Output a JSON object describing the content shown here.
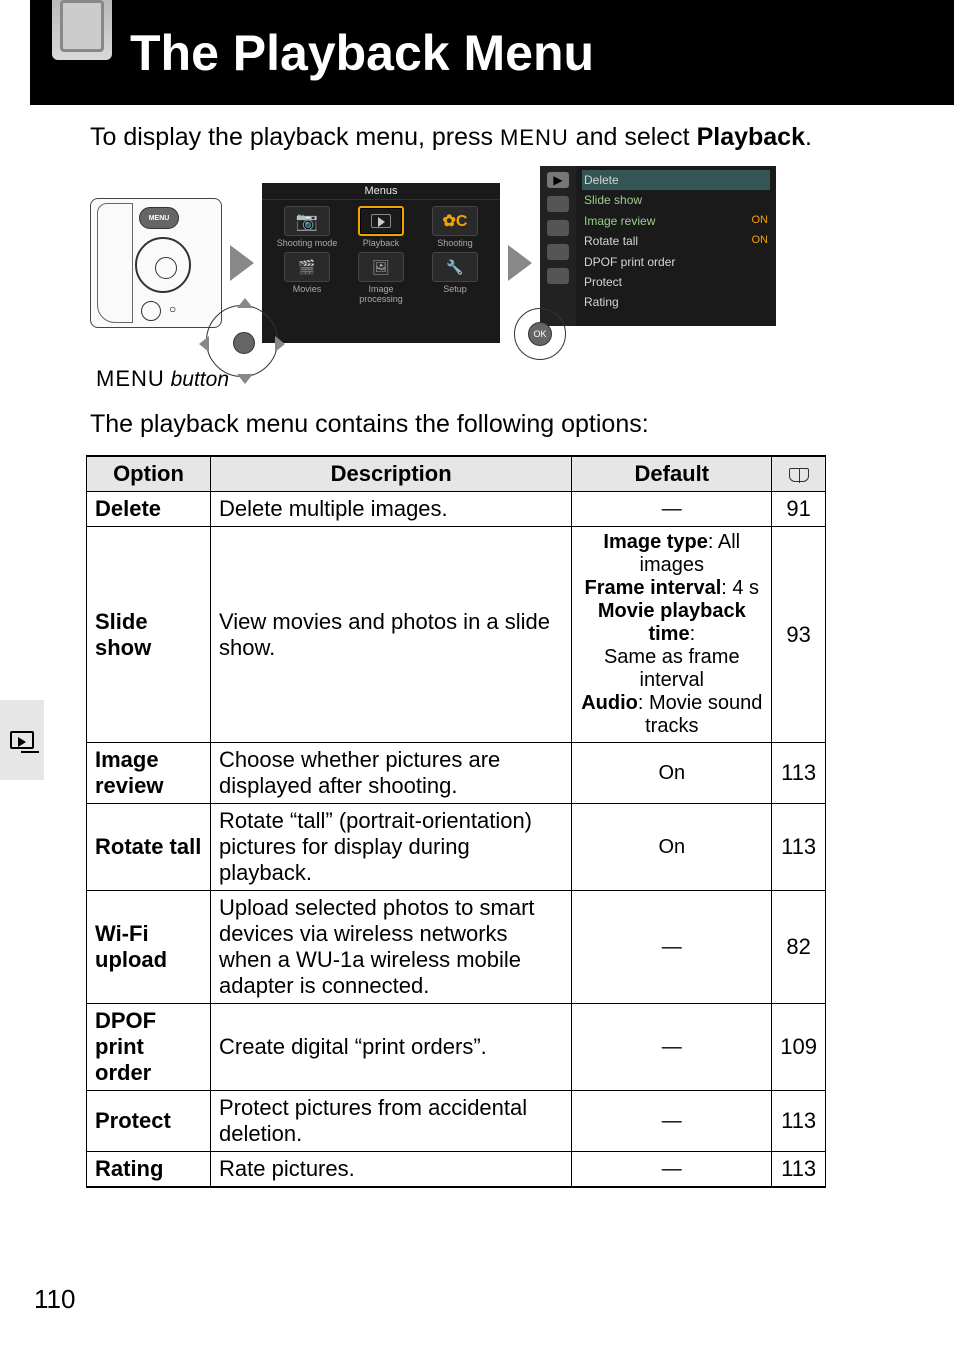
{
  "banner": {
    "title": "The Playback Menu"
  },
  "intro": {
    "pre": "To display the playback menu, press ",
    "menu_glyph": "MENU",
    "mid": " and select ",
    "bold": "Playback",
    "post": "."
  },
  "caption_pre": "MENU",
  "caption_word": " button",
  "screen_modes": {
    "title": "Menus",
    "cells": [
      {
        "label": "Shooting mode",
        "icon": "camera"
      },
      {
        "label": "Playback",
        "icon": "play",
        "selected": true
      },
      {
        "label": "Shooting",
        "icon": "oc"
      },
      {
        "label": "Movies",
        "icon": "movie"
      },
      {
        "label": "Image processing",
        "icon": "proc"
      },
      {
        "label": "Setup",
        "icon": "wrench"
      }
    ]
  },
  "screen_list": {
    "rows": [
      {
        "label": "Delete",
        "value": ""
      },
      {
        "label": "Slide show",
        "value": "",
        "green": true
      },
      {
        "label": "Image review",
        "value": "ON",
        "green": true
      },
      {
        "label": "Rotate tall",
        "value": "ON"
      },
      {
        "label": "DPOF print order",
        "value": ""
      },
      {
        "label": "Protect",
        "value": ""
      },
      {
        "label": "Rating",
        "value": ""
      }
    ]
  },
  "lead2": "The playback menu contains the following options:",
  "table": {
    "headers": {
      "option": "Option",
      "description": "Description",
      "default": "Default"
    },
    "rows": [
      {
        "option": "Delete",
        "description": "Delete multiple images.",
        "default_html": "—",
        "page": "91"
      },
      {
        "option": "Slide show",
        "description": "View movies and photos in a slide show.",
        "default_lines": [
          {
            "b": "Image type",
            "t": ": All images"
          },
          {
            "b": "Frame interval",
            "t": ": 4 s"
          },
          {
            "b": "Movie playback time",
            "t": ":"
          },
          {
            "b": "",
            "t": "Same as frame interval"
          },
          {
            "b": "Audio",
            "t": ": Movie sound tracks"
          }
        ],
        "page": "93"
      },
      {
        "option": "Image review",
        "description": "Choose whether pictures are displayed after shooting.",
        "default_html": "On",
        "page": "113"
      },
      {
        "option": "Rotate tall",
        "description": "Rotate “tall” (portrait-orientation) pictures for display during playback.",
        "default_html": "On",
        "page": "113"
      },
      {
        "option": "Wi-Fi upload",
        "description": "Upload selected photos to smart devices via wireless networks when a WU-1a wireless mobile adapter is connected.",
        "default_html": "—",
        "page": "82"
      },
      {
        "option": "DPOF print order",
        "description": "Create digital “print orders”.",
        "default_html": "—",
        "page": "109"
      },
      {
        "option": "Protect",
        "description": "Protect pictures from accidental deletion.",
        "default_html": "—",
        "page": "113"
      },
      {
        "option": "Rating",
        "description": "Rate pictures.",
        "default_html": "—",
        "page": "113"
      }
    ]
  },
  "page_number": "110"
}
